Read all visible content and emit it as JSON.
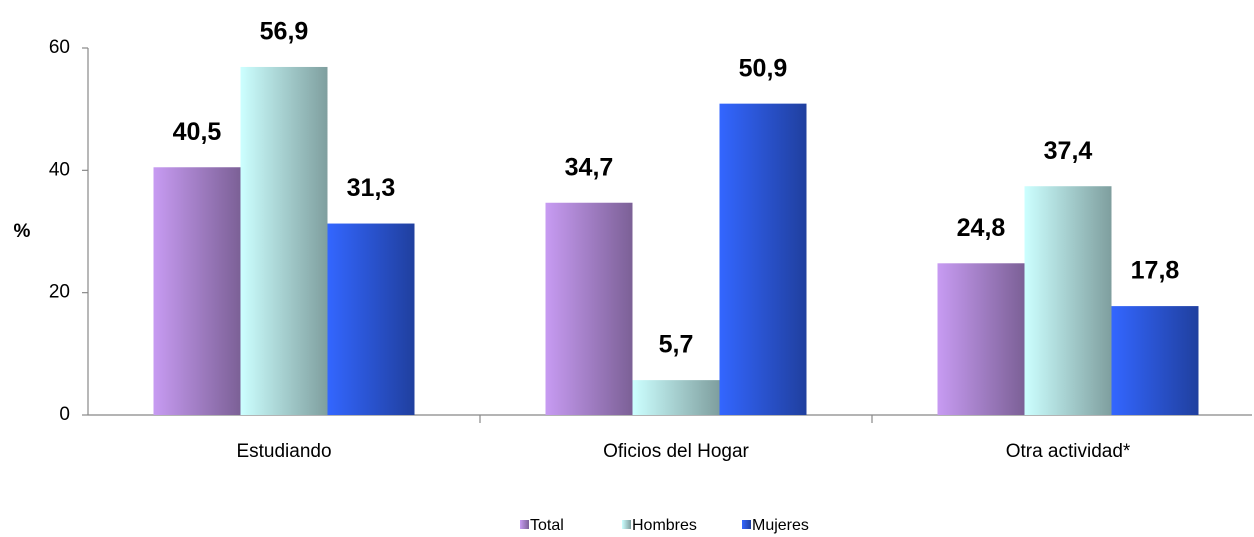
{
  "chart_data": {
    "type": "bar",
    "categories": [
      "Estudiando",
      "Oficios del Hogar",
      "Otra actividad*"
    ],
    "series": [
      {
        "name": "Total",
        "color": "#c79bf2",
        "values": [
          40.5,
          34.7,
          24.8
        ],
        "value_labels": [
          "40,5",
          "34,7",
          "24,8"
        ]
      },
      {
        "name": "Hombres",
        "color": "#ccffff",
        "values": [
          56.9,
          5.7,
          37.4
        ],
        "value_labels": [
          "56,9",
          "5,7",
          "37,4"
        ]
      },
      {
        "name": "Mujeres",
        "color": "#3366ff",
        "values": [
          31.3,
          50.9,
          17.8
        ],
        "value_labels": [
          "31,3",
          "50,9",
          "17,8"
        ]
      }
    ],
    "ylabel": "%",
    "ylim": [
      0,
      60
    ],
    "yticks": [
      0,
      20,
      40,
      60
    ],
    "legend": "bottom"
  }
}
